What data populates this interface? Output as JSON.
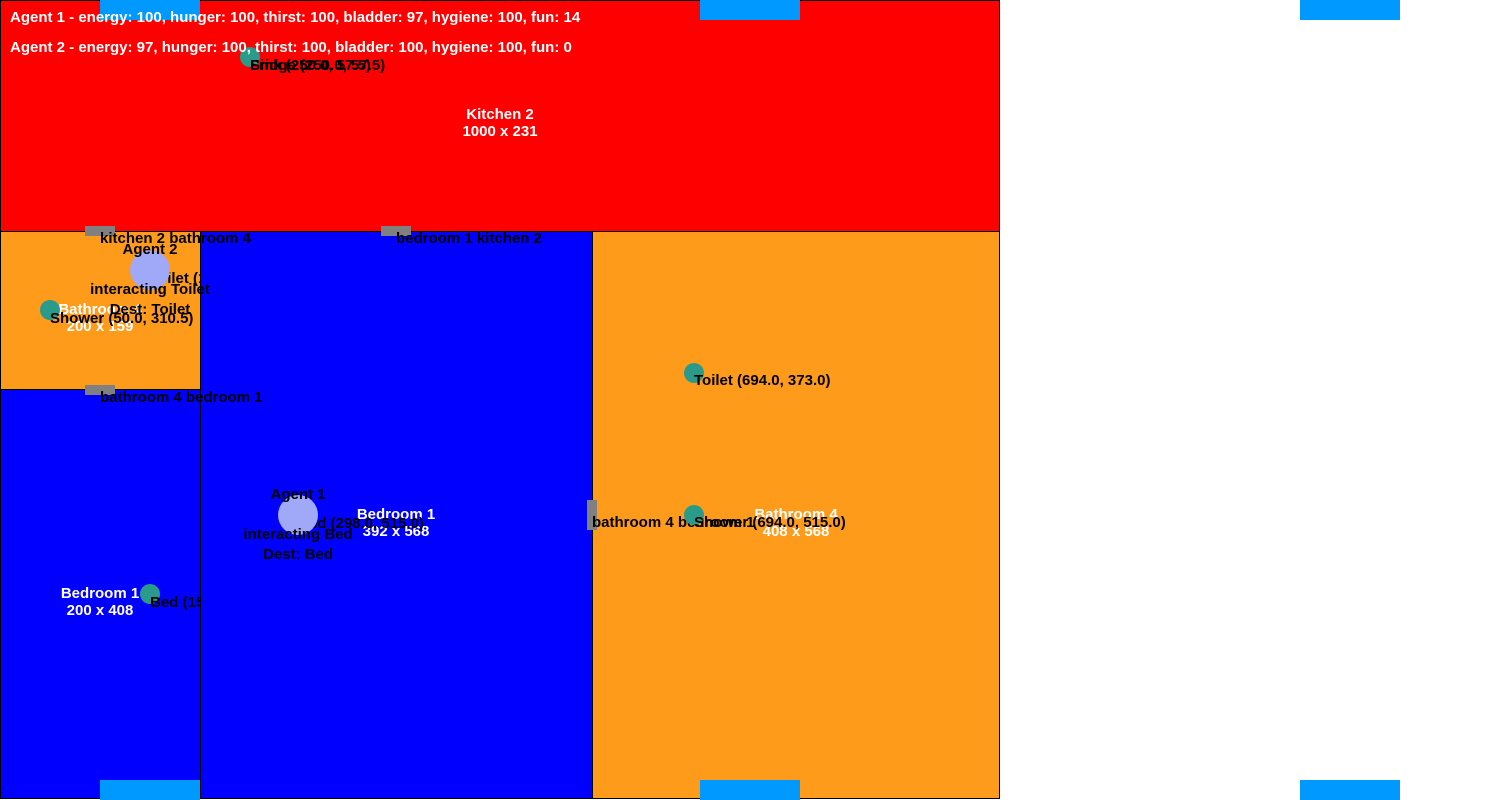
{
  "colors": {
    "kitchen": "#ff0000",
    "bedroom": "#0000ff",
    "bathroom": "#ff9b1a",
    "door": "#808080",
    "object": "#2a9a8a",
    "agent": "#a0a8f8",
    "portal": "#0099ff"
  },
  "status": {
    "agent1": "Agent 1 - energy: 100, hunger: 100, thirst: 100, bladder: 97, hygiene: 100, fun: 14",
    "agent2": "Agent 2 - energy: 97, hunger: 100, thirst: 100, bladder: 100, hygiene: 100, fun: 0"
  },
  "rooms": {
    "kitchen2": {
      "name": "Kitchen 2",
      "size": "1000 x 231"
    },
    "bathroom_small": {
      "name": "Bathroom 4",
      "size": "200 x 159"
    },
    "bedroom_small": {
      "name": "Bedroom 1",
      "size": "200 x 408"
    },
    "bedroom_big": {
      "name": "Bedroom 1",
      "size": "392 x 568"
    },
    "bathroom_big": {
      "name": "Bathroom 4",
      "size": "408 x 568"
    }
  },
  "doors": {
    "kitchen_bathroom": "kitchen 2 bathroom 4",
    "bedroom_kitchen": "bedroom 1 kitchen 2",
    "bathroom_bedroom": "bathroom 4 bedroom 1",
    "bathroom_bedroom_right": "bathroom 4 bedroom 1"
  },
  "objects": {
    "sink": "Sink (250.0, 57.5)",
    "fridge": "Fridge (250.0, 57.5)",
    "shower_small": "Shower (50.0, 310.5)",
    "toilet_small": "Toilet (150.0, 270.5)",
    "bed_small": "Bed (150.0, 594.0)",
    "bed_big": "Bed (298.0, 515.0)",
    "toilet_big": "Toilet (694.0, 373.0)",
    "shower_big": "Shower (694.0, 515.0)"
  },
  "agents": {
    "agent1": {
      "name": "Agent 1",
      "state": "interacting Bed",
      "dest": "Dest: Bed"
    },
    "agent2": {
      "name": "Agent 2",
      "state": "interacting Toilet",
      "dest": "Dest: Toilet"
    }
  }
}
